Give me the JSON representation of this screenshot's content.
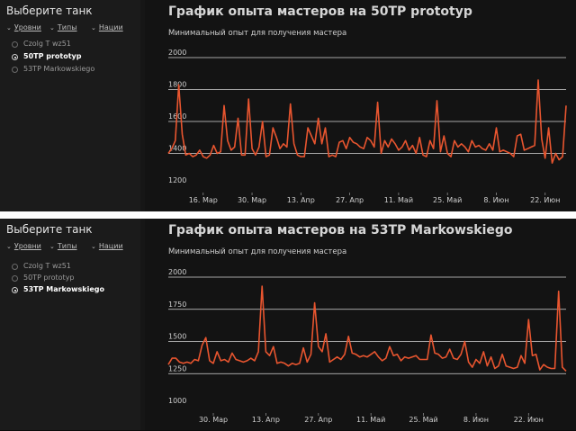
{
  "panels": [
    {
      "sidebar": {
        "title": "Выберите танк",
        "filters": [
          {
            "label": "Уровни"
          },
          {
            "label": "Типы"
          },
          {
            "label": "Нации"
          }
        ],
        "tanks": [
          {
            "label": "Czolg T wz51",
            "selected": false
          },
          {
            "label": "50TP prototyp",
            "selected": true
          },
          {
            "label": "53TP Markowskiego",
            "selected": false
          }
        ]
      },
      "chart_data": {
        "type": "line",
        "title": "График опыта мастеров на 50TP prototyp",
        "subtitle": "Минимальный опыт для получения мастера",
        "y_ticks": [
          1200,
          1400,
          1600,
          1800,
          2000
        ],
        "ylim": [
          1200,
          2000
        ],
        "x_ticks": [
          "16. Мар",
          "30. Мар",
          "13. Апр",
          "27. Апр",
          "11. Май",
          "25. Май",
          "8. Июн",
          "22. Июн"
        ],
        "x_tick_index": [
          10,
          24,
          38,
          52,
          66,
          80,
          94,
          108
        ],
        "line_color": "#e8552f",
        "values": [
          1400,
          1430,
          1480,
          1830,
          1520,
          1390,
          1400,
          1380,
          1390,
          1420,
          1380,
          1370,
          1390,
          1450,
          1400,
          1410,
          1700,
          1480,
          1420,
          1440,
          1620,
          1390,
          1390,
          1740,
          1430,
          1390,
          1440,
          1600,
          1380,
          1390,
          1560,
          1500,
          1430,
          1460,
          1440,
          1710,
          1460,
          1390,
          1380,
          1380,
          1560,
          1510,
          1460,
          1620,
          1460,
          1560,
          1380,
          1390,
          1380,
          1470,
          1480,
          1430,
          1500,
          1470,
          1460,
          1440,
          1430,
          1500,
          1480,
          1440,
          1720,
          1400,
          1480,
          1440,
          1490,
          1460,
          1420,
          1440,
          1480,
          1420,
          1450,
          1400,
          1500,
          1390,
          1380,
          1480,
          1430,
          1730,
          1410,
          1510,
          1400,
          1380,
          1480,
          1440,
          1460,
          1440,
          1410,
          1480,
          1440,
          1450,
          1430,
          1420,
          1460,
          1420,
          1560,
          1410,
          1420,
          1410,
          1400,
          1380,
          1510,
          1520,
          1420,
          1430,
          1440,
          1450,
          1860,
          1490,
          1370,
          1560,
          1340,
          1400,
          1360,
          1380,
          1700
        ]
      }
    },
    {
      "sidebar": {
        "title": "Выберите танк",
        "filters": [
          {
            "label": "Уровни"
          },
          {
            "label": "Типы"
          },
          {
            "label": "Нации"
          }
        ],
        "tanks": [
          {
            "label": "Czolg T wz51",
            "selected": false
          },
          {
            "label": "50TP prototyp",
            "selected": false
          },
          {
            "label": "53TP Markowskiego",
            "selected": true
          }
        ]
      },
      "chart_data": {
        "type": "line",
        "title": "График опыта мастеров на 53TP Markowskiego",
        "subtitle": "Минимальный опыт для получения мастера",
        "y_ticks": [
          1000,
          1250,
          1500,
          1750,
          2000
        ],
        "ylim": [
          1000,
          2000
        ],
        "x_ticks": [
          "30. Мар",
          "13. Апр",
          "27. Апр",
          "11. Май",
          "25. Май",
          "8. Июн",
          "22. Июн"
        ],
        "x_tick_index": [
          12,
          26,
          40,
          54,
          68,
          82,
          96
        ],
        "line_color": "#e8552f",
        "values": [
          1320,
          1370,
          1370,
          1340,
          1330,
          1340,
          1330,
          1360,
          1350,
          1470,
          1530,
          1350,
          1330,
          1420,
          1350,
          1360,
          1340,
          1410,
          1360,
          1350,
          1340,
          1350,
          1370,
          1350,
          1420,
          1930,
          1420,
          1390,
          1460,
          1330,
          1340,
          1330,
          1310,
          1330,
          1320,
          1330,
          1450,
          1340,
          1400,
          1800,
          1460,
          1420,
          1560,
          1340,
          1360,
          1380,
          1360,
          1400,
          1540,
          1410,
          1400,
          1380,
          1390,
          1380,
          1400,
          1420,
          1380,
          1350,
          1370,
          1460,
          1390,
          1400,
          1350,
          1380,
          1370,
          1380,
          1390,
          1360,
          1360,
          1360,
          1550,
          1410,
          1400,
          1370,
          1380,
          1440,
          1370,
          1360,
          1400,
          1500,
          1340,
          1300,
          1360,
          1330,
          1420,
          1310,
          1380,
          1290,
          1310,
          1400,
          1310,
          1300,
          1290,
          1300,
          1390,
          1330,
          1670,
          1390,
          1400,
          1280,
          1320,
          1300,
          1290,
          1290,
          1890,
          1300,
          1270
        ]
      }
    }
  ]
}
